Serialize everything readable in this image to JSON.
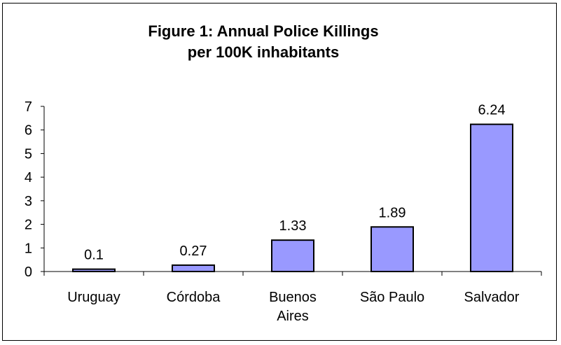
{
  "chart_data": {
    "type": "bar",
    "title_lines": [
      "Figure 1: Annual Police Killings",
      "per 100K inhabitants"
    ],
    "categories": [
      [
        "Uruguay"
      ],
      [
        "Córdoba"
      ],
      [
        "Buenos",
        "Aires"
      ],
      [
        "São Paulo"
      ],
      [
        "Salvador"
      ]
    ],
    "values": [
      0.1,
      0.27,
      1.33,
      1.89,
      6.24
    ],
    "data_labels": [
      "0.1",
      "0.27",
      "1.33",
      "1.89",
      "6.24"
    ],
    "ylim": [
      0,
      7
    ],
    "yticks": [
      "0",
      "1",
      "2",
      "3",
      "4",
      "5",
      "6",
      "7"
    ],
    "grid": false,
    "legend": "none",
    "colors": {
      "bar_fill": "#9999FF",
      "bar_stroke": "#000000"
    }
  }
}
